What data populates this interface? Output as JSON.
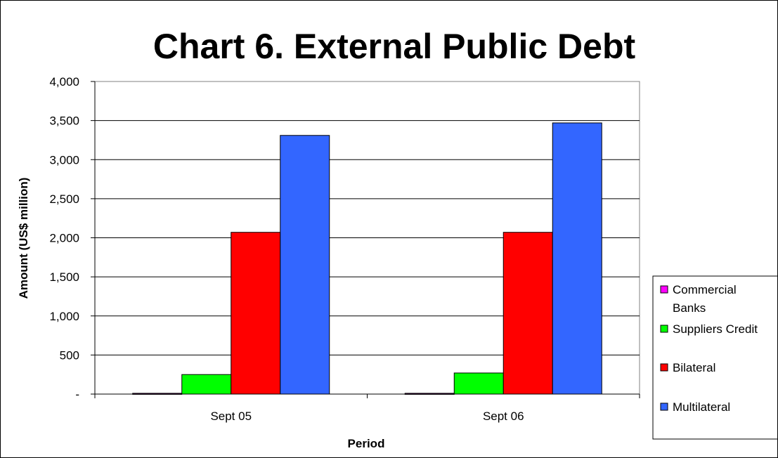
{
  "chart_data": {
    "type": "bar",
    "title": "Chart 6. External Public Debt",
    "xlabel": "Period",
    "ylabel": "Amount (US$ million)",
    "categories": [
      "Sept 05",
      "Sept 06"
    ],
    "ylim": [
      0,
      4000
    ],
    "yticks": [
      {
        "value": 0,
        "label": "-"
      },
      {
        "value": 500,
        "label": "500"
      },
      {
        "value": 1000,
        "label": "1,000"
      },
      {
        "value": 1500,
        "label": "1,500"
      },
      {
        "value": 2000,
        "label": "2,000"
      },
      {
        "value": 2500,
        "label": "2,500"
      },
      {
        "value": 3000,
        "label": "3,000"
      },
      {
        "value": 3500,
        "label": "3,500"
      },
      {
        "value": 4000,
        "label": "4,000"
      }
    ],
    "grid": true,
    "legend_position": "right",
    "series": [
      {
        "name": "Commercial Banks",
        "legend_lines": [
          "Commercial",
          "Banks"
        ],
        "color": "#ff00ff",
        "values": [
          10,
          10
        ]
      },
      {
        "name": "Suppliers Credit",
        "legend_lines": [
          "Suppliers Credit"
        ],
        "color": "#00ff00",
        "values": [
          250,
          270
        ]
      },
      {
        "name": "Bilateral",
        "legend_lines": [
          "Bilateral"
        ],
        "color": "#ff0000",
        "values": [
          2070,
          2070
        ]
      },
      {
        "name": "Multilateral",
        "legend_lines": [
          "Multilateral"
        ],
        "color": "#3366ff",
        "values": [
          3310,
          3470
        ]
      }
    ]
  }
}
